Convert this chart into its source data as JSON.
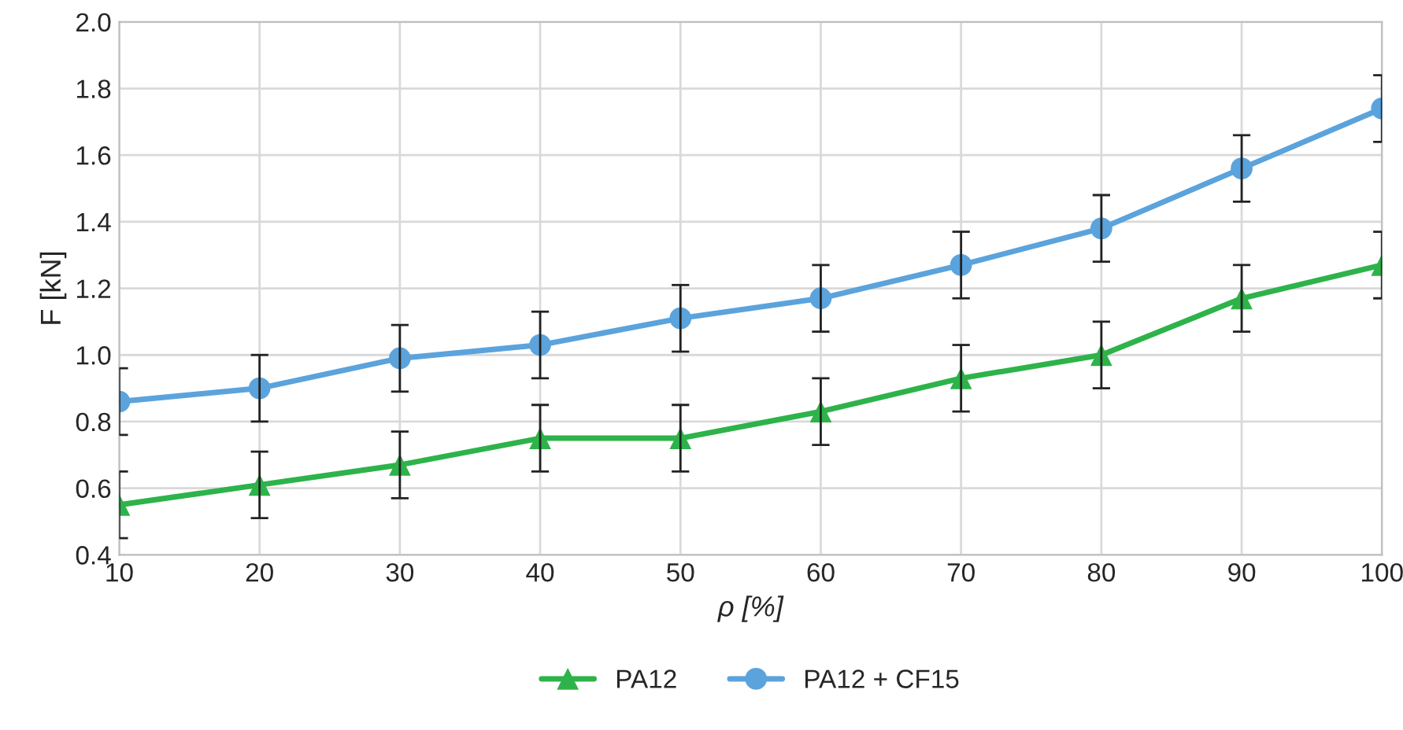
{
  "chart_data": {
    "type": "line",
    "xlabel": "ρ [%]",
    "ylabel": "F [kN]",
    "x": [
      10,
      20,
      30,
      40,
      50,
      60,
      70,
      80,
      90,
      100
    ],
    "series": [
      {
        "name": "PA12",
        "color": "#2db34a",
        "marker": "triangle",
        "values": [
          0.55,
          0.61,
          0.67,
          0.75,
          0.75,
          0.83,
          0.93,
          1.0,
          1.17,
          1.27
        ],
        "errors": [
          0.1,
          0.1,
          0.1,
          0.1,
          0.1,
          0.1,
          0.1,
          0.1,
          0.1,
          0.1
        ]
      },
      {
        "name": "PA12 + CF15",
        "color": "#5ba3dc",
        "marker": "circle",
        "values": [
          0.86,
          0.9,
          0.99,
          1.03,
          1.11,
          1.17,
          1.27,
          1.38,
          1.56,
          1.74
        ],
        "errors": [
          0.1,
          0.1,
          0.1,
          0.1,
          0.1,
          0.1,
          0.1,
          0.1,
          0.1,
          0.1
        ]
      }
    ],
    "xlim": [
      10,
      100
    ],
    "xticks": [
      10,
      20,
      30,
      40,
      50,
      60,
      70,
      80,
      90,
      100
    ],
    "ylim": [
      0.4,
      2.0
    ],
    "yticks": [
      {
        "value": 0.4,
        "label": "0.4"
      },
      {
        "value": 0.6,
        "label": "0.6"
      },
      {
        "value": 0.8,
        "label": "0.8"
      },
      {
        "value": 1.0,
        "label": "1.0"
      },
      {
        "value": 1.2,
        "label": "1.2"
      },
      {
        "value": 1.4,
        "label": "1.4"
      },
      {
        "value": 1.6,
        "label": "1.6"
      },
      {
        "value": 1.8,
        "label": "1.8"
      },
      {
        "value": 2.0,
        "label": "2.0"
      }
    ],
    "grid": true,
    "legend": "bottom",
    "line_style": "solid"
  }
}
